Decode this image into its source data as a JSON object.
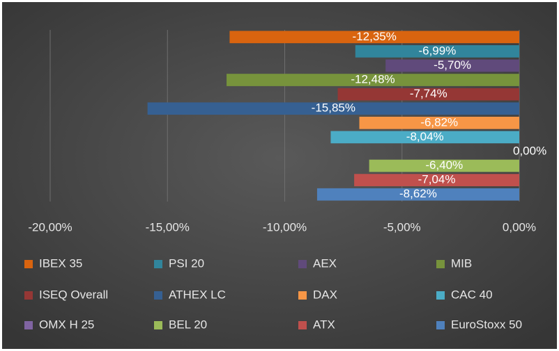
{
  "chart_data": {
    "type": "bar",
    "orientation": "horizontal",
    "series": [
      {
        "name": "IBEX 35",
        "color": "#d9640f",
        "values": [
          -12.35
        ],
        "value_labels": [
          "-12,35%"
        ]
      },
      {
        "name": "PSI 20",
        "color": "#31859c",
        "values": [
          -6.99
        ],
        "value_labels": [
          "-6,99%"
        ]
      },
      {
        "name": "AEX",
        "color": "#604a7b",
        "values": [
          -5.7
        ],
        "value_labels": [
          "-5,70%"
        ]
      },
      {
        "name": "MIB",
        "color": "#77933c",
        "values": [
          -12.48
        ],
        "value_labels": [
          "-12,48%"
        ]
      },
      {
        "name": "ISEQ Overall",
        "color": "#953735",
        "values": [
          -7.74
        ],
        "value_labels": [
          "-7,74%"
        ]
      },
      {
        "name": "ATHEX LC",
        "color": "#366092",
        "values": [
          -15.85
        ],
        "value_labels": [
          "-15,85%"
        ]
      },
      {
        "name": "DAX",
        "color": "#f79646",
        "values": [
          -6.82
        ],
        "value_labels": [
          "-6,82%"
        ]
      },
      {
        "name": "CAC 40",
        "color": "#4bacc6",
        "values": [
          -8.04
        ],
        "value_labels": [
          "-8,04%"
        ]
      },
      {
        "name": "OMX H 25",
        "color": "#8064a2",
        "values": [
          0
        ],
        "value_labels": [
          "0,00%"
        ]
      },
      {
        "name": "BEL 20",
        "color": "#9bbb59",
        "values": [
          -6.4
        ],
        "value_labels": [
          "-6,40%"
        ]
      },
      {
        "name": "ATX",
        "color": "#c0504d",
        "values": [
          -7.04
        ],
        "value_labels": [
          "-7,04%"
        ]
      },
      {
        "name": "EuroStoxx 50",
        "color": "#4f81bd",
        "values": [
          -8.62
        ],
        "value_labels": [
          "-8,62%"
        ]
      }
    ],
    "xlim": [
      -20,
      0
    ],
    "xticks": [
      {
        "value": -20,
        "label": "-20,00%"
      },
      {
        "value": -15,
        "label": "-15,00%"
      },
      {
        "value": -10,
        "label": "-10,00%"
      },
      {
        "value": -5,
        "label": "-5,00%"
      },
      {
        "value": 0,
        "label": "0,00%"
      }
    ],
    "grid": true,
    "legend": "bottom"
  }
}
